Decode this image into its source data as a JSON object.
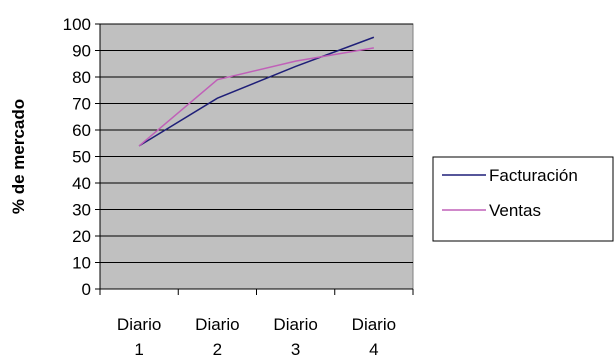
{
  "chart_data": {
    "type": "line",
    "categories": [
      [
        "Diario",
        "1"
      ],
      [
        "Diario",
        "2"
      ],
      [
        "Diario",
        "3"
      ],
      [
        "Diario",
        "4"
      ]
    ],
    "ylabel": "% de mercado",
    "xlabel": "",
    "ylim": [
      0,
      100
    ],
    "yticks": [
      0,
      10,
      20,
      30,
      40,
      50,
      60,
      70,
      80,
      90,
      100
    ],
    "grid": true,
    "legend_position": "right",
    "plot_background": "#c0c0c0",
    "series": [
      {
        "name": "Facturación",
        "color": "#1f1f78",
        "values": [
          54,
          72,
          84,
          95
        ]
      },
      {
        "name": "Ventas",
        "color": "#c060b8",
        "values": [
          54,
          79,
          86,
          91
        ]
      }
    ]
  }
}
